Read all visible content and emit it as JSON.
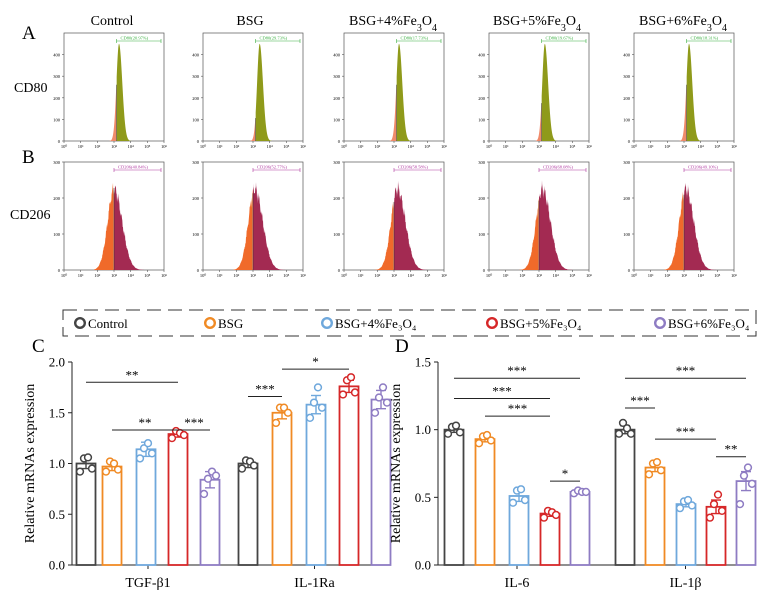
{
  "figure": {
    "panel_letters": [
      "A",
      "B",
      "C",
      "D"
    ],
    "group_names": [
      "Control",
      "BSG",
      "BSG+4%Fe3O4",
      "BSG+5%Fe3O4",
      "BSG+6%Fe3O4"
    ],
    "row_markers": [
      "CD80",
      "CD206"
    ],
    "colors": {
      "control": "#444444",
      "bsg": "#f08a24",
      "fe4": "#6fa8dc",
      "fe5": "#d62728",
      "fe6": "#8e7cc3",
      "cd80_fill": "#8f9a1a",
      "cd80_orange": "#f08a6a",
      "cd80_gate": "#3cb043",
      "cd206_fill": "#a32a52",
      "cd206_orange": "#f06a2a",
      "cd206_gate": "#b03aa0"
    }
  },
  "flow": {
    "cd80": {
      "ymax": 500,
      "yticks": [
        "0",
        "100",
        "200",
        "300",
        "400"
      ],
      "xticks": [
        "10⁰",
        "10¹",
        "10²",
        "10³",
        "10⁴",
        "10⁵",
        "10⁶"
      ],
      "gates": [
        "CD80(20.97%)",
        "CD80(29.73%)",
        "CD80(17.73%)",
        "CD80(19.67%)",
        "CD80(18.31%)"
      ],
      "peak_log": [
        3.3,
        3.4,
        3.3,
        3.35,
        3.3
      ]
    },
    "cd206": {
      "ymax": 300,
      "yticks": [
        "0",
        "100",
        "200",
        "300"
      ],
      "xticks": [
        "10⁰",
        "10¹",
        "10²",
        "10³",
        "10⁴",
        "10⁵",
        "10⁶"
      ],
      "gates": [
        "CD206(40.84%)",
        "CD206(52.77%)",
        "CD206(58.58%)",
        "CD206(68.08%)",
        "CD206(49.10%)"
      ],
      "peak_log": [
        3.0,
        3.1,
        3.2,
        3.2,
        3.1
      ]
    }
  },
  "legend": {
    "entries": [
      "Control",
      "BSG",
      "BSG+4%Fe₃O₄",
      "BSG+5%Fe₃O₄",
      "BSG+6%Fe₃O₄"
    ]
  },
  "chart_data": [
    {
      "panel": "C",
      "type": "bar",
      "ylabel": "Relative mRNAs expression",
      "ylim": [
        0,
        2.0
      ],
      "yticks": [
        "0.0",
        "0.5",
        "1.0",
        "1.5",
        "2.0"
      ],
      "categories": [
        "TGF-β1",
        "IL-1Ra"
      ],
      "series": [
        {
          "name": "Control",
          "values": [
            1.0,
            1.0
          ],
          "errors": [
            0.05,
            0.04
          ],
          "points": [
            [
              0.92,
              1.05,
              1.06,
              0.95
            ],
            [
              0.95,
              1.03,
              1.02,
              0.98
            ]
          ]
        },
        {
          "name": "BSG",
          "values": [
            0.97,
            1.5
          ],
          "errors": [
            0.04,
            0.06
          ],
          "points": [
            [
              0.92,
              1.02,
              1.0,
              0.94
            ],
            [
              1.4,
              1.55,
              1.55,
              1.5
            ]
          ]
        },
        {
          "name": "BSG+4%Fe3O4",
          "values": [
            1.14,
            1.58
          ],
          "errors": [
            0.07,
            0.09
          ],
          "points": [
            [
              1.05,
              1.15,
              1.2,
              1.1
            ],
            [
              1.45,
              1.6,
              1.75,
              1.55
            ]
          ]
        },
        {
          "name": "BSG+5%Fe3O4",
          "values": [
            1.29,
            1.76
          ],
          "errors": [
            0.03,
            0.06
          ],
          "points": [
            [
              1.25,
              1.32,
              1.3,
              1.28
            ],
            [
              1.68,
              1.82,
              1.85,
              1.7
            ]
          ]
        },
        {
          "name": "BSG+6%Fe3O4",
          "values": [
            0.84,
            1.63
          ],
          "errors": [
            0.08,
            0.09
          ],
          "points": [
            [
              0.7,
              0.85,
              0.92,
              0.88
            ],
            [
              1.5,
              1.65,
              1.75,
              1.6
            ]
          ]
        }
      ],
      "significance": [
        {
          "label": "**",
          "y": 1.8,
          "from": [
            0,
            0
          ],
          "to": [
            0,
            3
          ]
        },
        {
          "label": "**",
          "y": 1.33,
          "from": [
            0,
            1
          ],
          "to": [
            0,
            3
          ]
        },
        {
          "label": "***",
          "y": 1.33,
          "from": [
            0,
            3
          ],
          "to": [
            0,
            4
          ]
        },
        {
          "label": "***",
          "y": 1.66,
          "from": [
            1,
            0
          ],
          "to": [
            1,
            1
          ]
        },
        {
          "label": "*",
          "y": 1.93,
          "from": [
            1,
            1
          ],
          "to": [
            1,
            3
          ]
        }
      ]
    },
    {
      "panel": "D",
      "type": "bar",
      "ylabel": "Relative mRNAs expression",
      "ylim": [
        0,
        1.5
      ],
      "yticks": [
        "0.0",
        "0.5",
        "1.0",
        "1.5"
      ],
      "categories": [
        "IL-6",
        "IL-1β"
      ],
      "series": [
        {
          "name": "Control",
          "values": [
            1.0,
            1.0
          ],
          "errors": [
            0.02,
            0.03
          ],
          "points": [
            [
              0.97,
              1.02,
              1.03,
              0.98
            ],
            [
              0.97,
              1.05,
              1.01,
              0.97
            ]
          ]
        },
        {
          "name": "BSG",
          "values": [
            0.93,
            0.72
          ],
          "errors": [
            0.02,
            0.03
          ],
          "points": [
            [
              0.9,
              0.95,
              0.96,
              0.92
            ],
            [
              0.67,
              0.75,
              0.76,
              0.7
            ]
          ]
        },
        {
          "name": "BSG+4%Fe3O4",
          "values": [
            0.51,
            0.45
          ],
          "errors": [
            0.04,
            0.02
          ],
          "points": [
            [
              0.46,
              0.55,
              0.56,
              0.48
            ],
            [
              0.42,
              0.47,
              0.48,
              0.44
            ]
          ]
        },
        {
          "name": "BSG+5%Fe3O4",
          "values": [
            0.38,
            0.43
          ],
          "errors": [
            0.02,
            0.05
          ],
          "points": [
            [
              0.35,
              0.4,
              0.39,
              0.37
            ],
            [
              0.35,
              0.45,
              0.52,
              0.4
            ]
          ]
        },
        {
          "name": "BSG+6%Fe3O4",
          "values": [
            0.54,
            0.62
          ],
          "errors": [
            0.01,
            0.07
          ],
          "points": [
            [
              0.53,
              0.55,
              0.54,
              0.54
            ],
            [
              0.45,
              0.66,
              0.72,
              0.6
            ]
          ]
        }
      ],
      "significance": [
        {
          "label": "***",
          "y": 1.38,
          "from": [
            0,
            0
          ],
          "to": [
            0,
            4
          ]
        },
        {
          "label": "***",
          "y": 1.23,
          "from": [
            0,
            0
          ],
          "to": [
            0,
            3
          ]
        },
        {
          "label": "***",
          "y": 1.1,
          "from": [
            0,
            1
          ],
          "to": [
            0,
            3
          ]
        },
        {
          "label": "*",
          "y": 0.62,
          "from": [
            0,
            3
          ],
          "to": [
            0,
            4
          ]
        },
        {
          "label": "***",
          "y": 1.16,
          "from": [
            1,
            0
          ],
          "to": [
            1,
            1
          ]
        },
        {
          "label": "***",
          "y": 1.38,
          "from": [
            1,
            0
          ],
          "to": [
            1,
            4
          ]
        },
        {
          "label": "***",
          "y": 0.93,
          "from": [
            1,
            1
          ],
          "to": [
            1,
            3
          ]
        },
        {
          "label": "**",
          "y": 0.8,
          "from": [
            1,
            3
          ],
          "to": [
            1,
            4
          ]
        }
      ]
    }
  ]
}
